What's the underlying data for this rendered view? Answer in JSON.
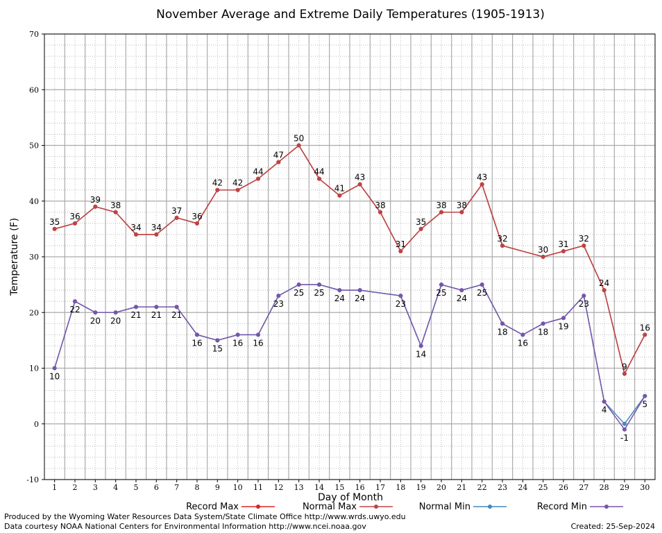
{
  "chart_data": {
    "type": "line",
    "title": "November Average and Extreme Daily Temperatures (1905-1913)",
    "xlabel": "Day of Month",
    "ylabel": "Temperature (F)",
    "ylim": [
      -10,
      70
    ],
    "yticks": [
      -10,
      0,
      10,
      20,
      30,
      40,
      50,
      60,
      70
    ],
    "x": [
      1,
      2,
      3,
      4,
      5,
      6,
      7,
      8,
      9,
      10,
      11,
      12,
      13,
      14,
      15,
      16,
      17,
      18,
      19,
      20,
      21,
      22,
      23,
      24,
      25,
      26,
      27,
      28,
      29,
      30
    ],
    "grid": true,
    "legend_position": "bottom",
    "series": [
      {
        "name": "Record Max",
        "color": "#dd2222",
        "values": [
          35,
          36,
          39,
          38,
          34,
          34,
          37,
          36,
          42,
          42,
          44,
          47,
          50,
          44,
          41,
          43,
          38,
          31,
          35,
          38,
          38,
          43,
          32,
          null,
          30,
          31,
          32,
          24,
          9,
          16
        ]
      },
      {
        "name": "Normal Max",
        "color": "#bb4444",
        "values": [
          35,
          36,
          39,
          38,
          34,
          34,
          37,
          36,
          42,
          42,
          44,
          47,
          50,
          44,
          41,
          43,
          38,
          31,
          35,
          38,
          38,
          43,
          32,
          null,
          30,
          31,
          32,
          24,
          9,
          16
        ]
      },
      {
        "name": "Normal Min",
        "color": "#4488bb",
        "values": [
          10,
          22,
          20,
          20,
          21,
          21,
          21,
          16,
          15,
          16,
          16,
          23,
          25,
          25,
          24,
          24,
          null,
          23,
          14,
          25,
          24,
          25,
          18,
          16,
          18,
          19,
          23,
          4,
          0,
          5
        ]
      },
      {
        "name": "Record Min",
        "color": "#7755aa",
        "values": [
          10,
          22,
          20,
          20,
          21,
          21,
          21,
          16,
          15,
          16,
          16,
          23,
          25,
          25,
          24,
          24,
          null,
          23,
          14,
          25,
          24,
          25,
          18,
          16,
          18,
          19,
          23,
          4,
          -1,
          5
        ]
      }
    ],
    "max_labels": [
      "35",
      "36",
      "39",
      "38",
      "34",
      "34",
      "37",
      "36",
      "42",
      "42",
      "44",
      "47",
      "50",
      "44",
      "41",
      "43",
      "38",
      "31",
      "35",
      "38",
      "38",
      "43",
      "32",
      "",
      "30",
      "31",
      "32",
      "24",
      "9",
      "16"
    ],
    "min_labels": [
      "10",
      "22",
      "20",
      "20",
      "21",
      "21",
      "21",
      "16",
      "15",
      "16",
      "16",
      "23",
      "25",
      "25",
      "24",
      "24",
      "",
      "23",
      "14",
      "25",
      "24",
      "25",
      "18",
      "16",
      "18",
      "19",
      "23",
      "4",
      "-1",
      "5"
    ]
  },
  "footer": {
    "line1": "Produced by the Wyoming Water Resources Data System/State Climate Office http://www.wrds.uwyo.edu",
    "line2": "Data courtesy NOAA National Centers for Environmental Information http://www.ncei.noaa.gov",
    "created": "Created:  25-Sep-2024"
  }
}
